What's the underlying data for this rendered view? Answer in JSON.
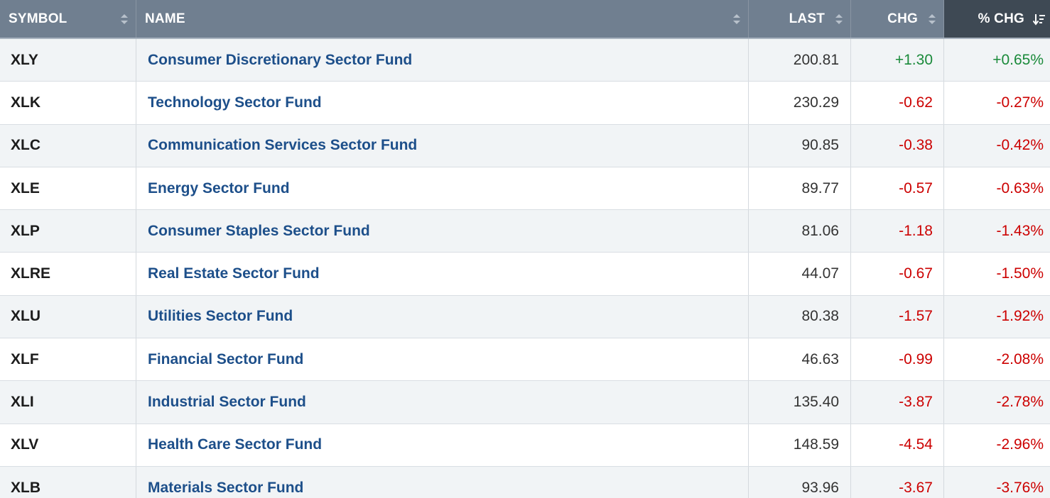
{
  "table": {
    "columns": [
      {
        "label": "SYMBOL",
        "sort": "none"
      },
      {
        "label": "NAME",
        "sort": "none"
      },
      {
        "label": "LAST",
        "sort": "none"
      },
      {
        "label": "CHG",
        "sort": "none"
      },
      {
        "label": "% CHG",
        "sort": "desc"
      }
    ],
    "rows": [
      {
        "symbol": "XLY",
        "name": "Consumer Discretionary Sector Fund",
        "last": "200.81",
        "chg": "+1.30",
        "pct": "+0.65%",
        "dir": "pos"
      },
      {
        "symbol": "XLK",
        "name": "Technology Sector Fund",
        "last": "230.29",
        "chg": "-0.62",
        "pct": "-0.27%",
        "dir": "neg"
      },
      {
        "symbol": "XLC",
        "name": "Communication Services Sector Fund",
        "last": "90.85",
        "chg": "-0.38",
        "pct": "-0.42%",
        "dir": "neg"
      },
      {
        "symbol": "XLE",
        "name": "Energy Sector Fund",
        "last": "89.77",
        "chg": "-0.57",
        "pct": "-0.63%",
        "dir": "neg"
      },
      {
        "symbol": "XLP",
        "name": "Consumer Staples Sector Fund",
        "last": "81.06",
        "chg": "-1.18",
        "pct": "-1.43%",
        "dir": "neg"
      },
      {
        "symbol": "XLRE",
        "name": "Real Estate Sector Fund",
        "last": "44.07",
        "chg": "-0.67",
        "pct": "-1.50%",
        "dir": "neg"
      },
      {
        "symbol": "XLU",
        "name": "Utilities Sector Fund",
        "last": "80.38",
        "chg": "-1.57",
        "pct": "-1.92%",
        "dir": "neg"
      },
      {
        "symbol": "XLF",
        "name": "Financial Sector Fund",
        "last": "46.63",
        "chg": "-0.99",
        "pct": "-2.08%",
        "dir": "neg"
      },
      {
        "symbol": "XLI",
        "name": "Industrial Sector Fund",
        "last": "135.40",
        "chg": "-3.87",
        "pct": "-2.78%",
        "dir": "neg"
      },
      {
        "symbol": "XLV",
        "name": "Health Care Sector Fund",
        "last": "148.59",
        "chg": "-4.54",
        "pct": "-2.96%",
        "dir": "neg"
      },
      {
        "symbol": "XLB",
        "name": "Materials Sector Fund",
        "last": "93.96",
        "chg": "-3.67",
        "pct": "-3.76%",
        "dir": "neg"
      }
    ]
  },
  "colors": {
    "header_bg": "#707f90",
    "header_active_bg": "#3e4954",
    "name_link": "#1d4f8a",
    "positive": "#1a8a3a",
    "negative": "#cc0000"
  },
  "icons": {
    "sort_unsorted": "sort-updown-icon",
    "sort_desc": "sort-descending-icon"
  }
}
